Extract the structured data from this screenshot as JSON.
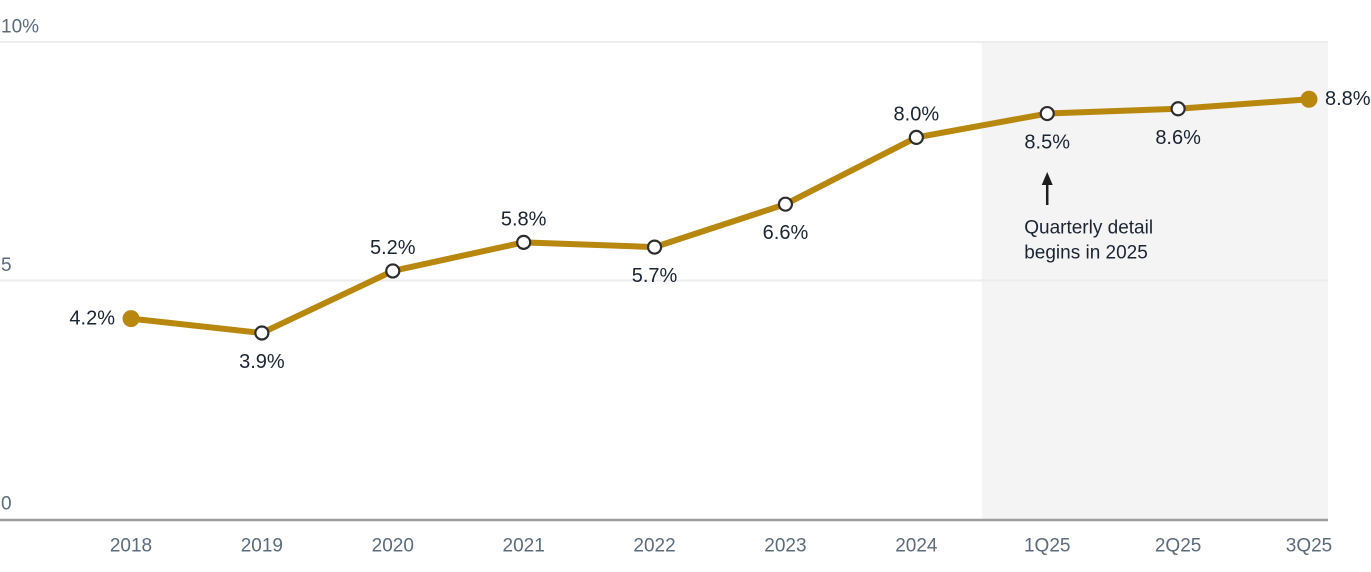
{
  "chart_data": {
    "type": "line",
    "categories": [
      "2018",
      "2019",
      "2020",
      "2021",
      "2022",
      "2023",
      "2024",
      "1Q25",
      "2Q25",
      "3Q25"
    ],
    "values": [
      4.2,
      3.9,
      5.2,
      5.8,
      5.7,
      6.6,
      8.0,
      8.5,
      8.6,
      8.8
    ],
    "point_labels": [
      "4.2%",
      "3.9%",
      "5.2%",
      "5.8%",
      "5.7%",
      "6.6%",
      "8.0%",
      "8.5%",
      "8.6%",
      "8.8%"
    ],
    "label_positions": [
      "left",
      "below",
      "above",
      "above",
      "below",
      "below",
      "above",
      "below",
      "below",
      "right"
    ],
    "marker_styles": [
      "filled",
      "open",
      "open",
      "open",
      "open",
      "open",
      "open",
      "open",
      "open",
      "filled"
    ],
    "title": "",
    "xlabel": "",
    "ylabel": "",
    "ylim": [
      0,
      10
    ],
    "yticks": [
      {
        "value": 10,
        "label": "10%"
      },
      {
        "value": 5,
        "label": "5"
      },
      {
        "value": 0,
        "label": "0"
      }
    ],
    "grid": true,
    "legend": "none",
    "highlight_region": {
      "start_category": "1Q25",
      "starts_at_midpoint_before": true
    },
    "annotation": {
      "lines": [
        "Quarterly detail",
        "begins in 2025"
      ],
      "arrow_target_category": "1Q25",
      "arrow_direction": "up"
    },
    "colors": {
      "line": "#B8870E",
      "marker_filled": "#B8870E",
      "marker_open_fill": "#FFFFFF",
      "marker_ring": "#2D2D2D",
      "data_label": "#1B2433",
      "tick_label": "#5B6B7B",
      "gridline": "#ECECEC",
      "axis_line": "#9E9E9E",
      "region": "#F4F4F4",
      "annotation_text": "#1B2433",
      "arrow": "#1E1E1E",
      "background": "#FFFFFF"
    }
  }
}
